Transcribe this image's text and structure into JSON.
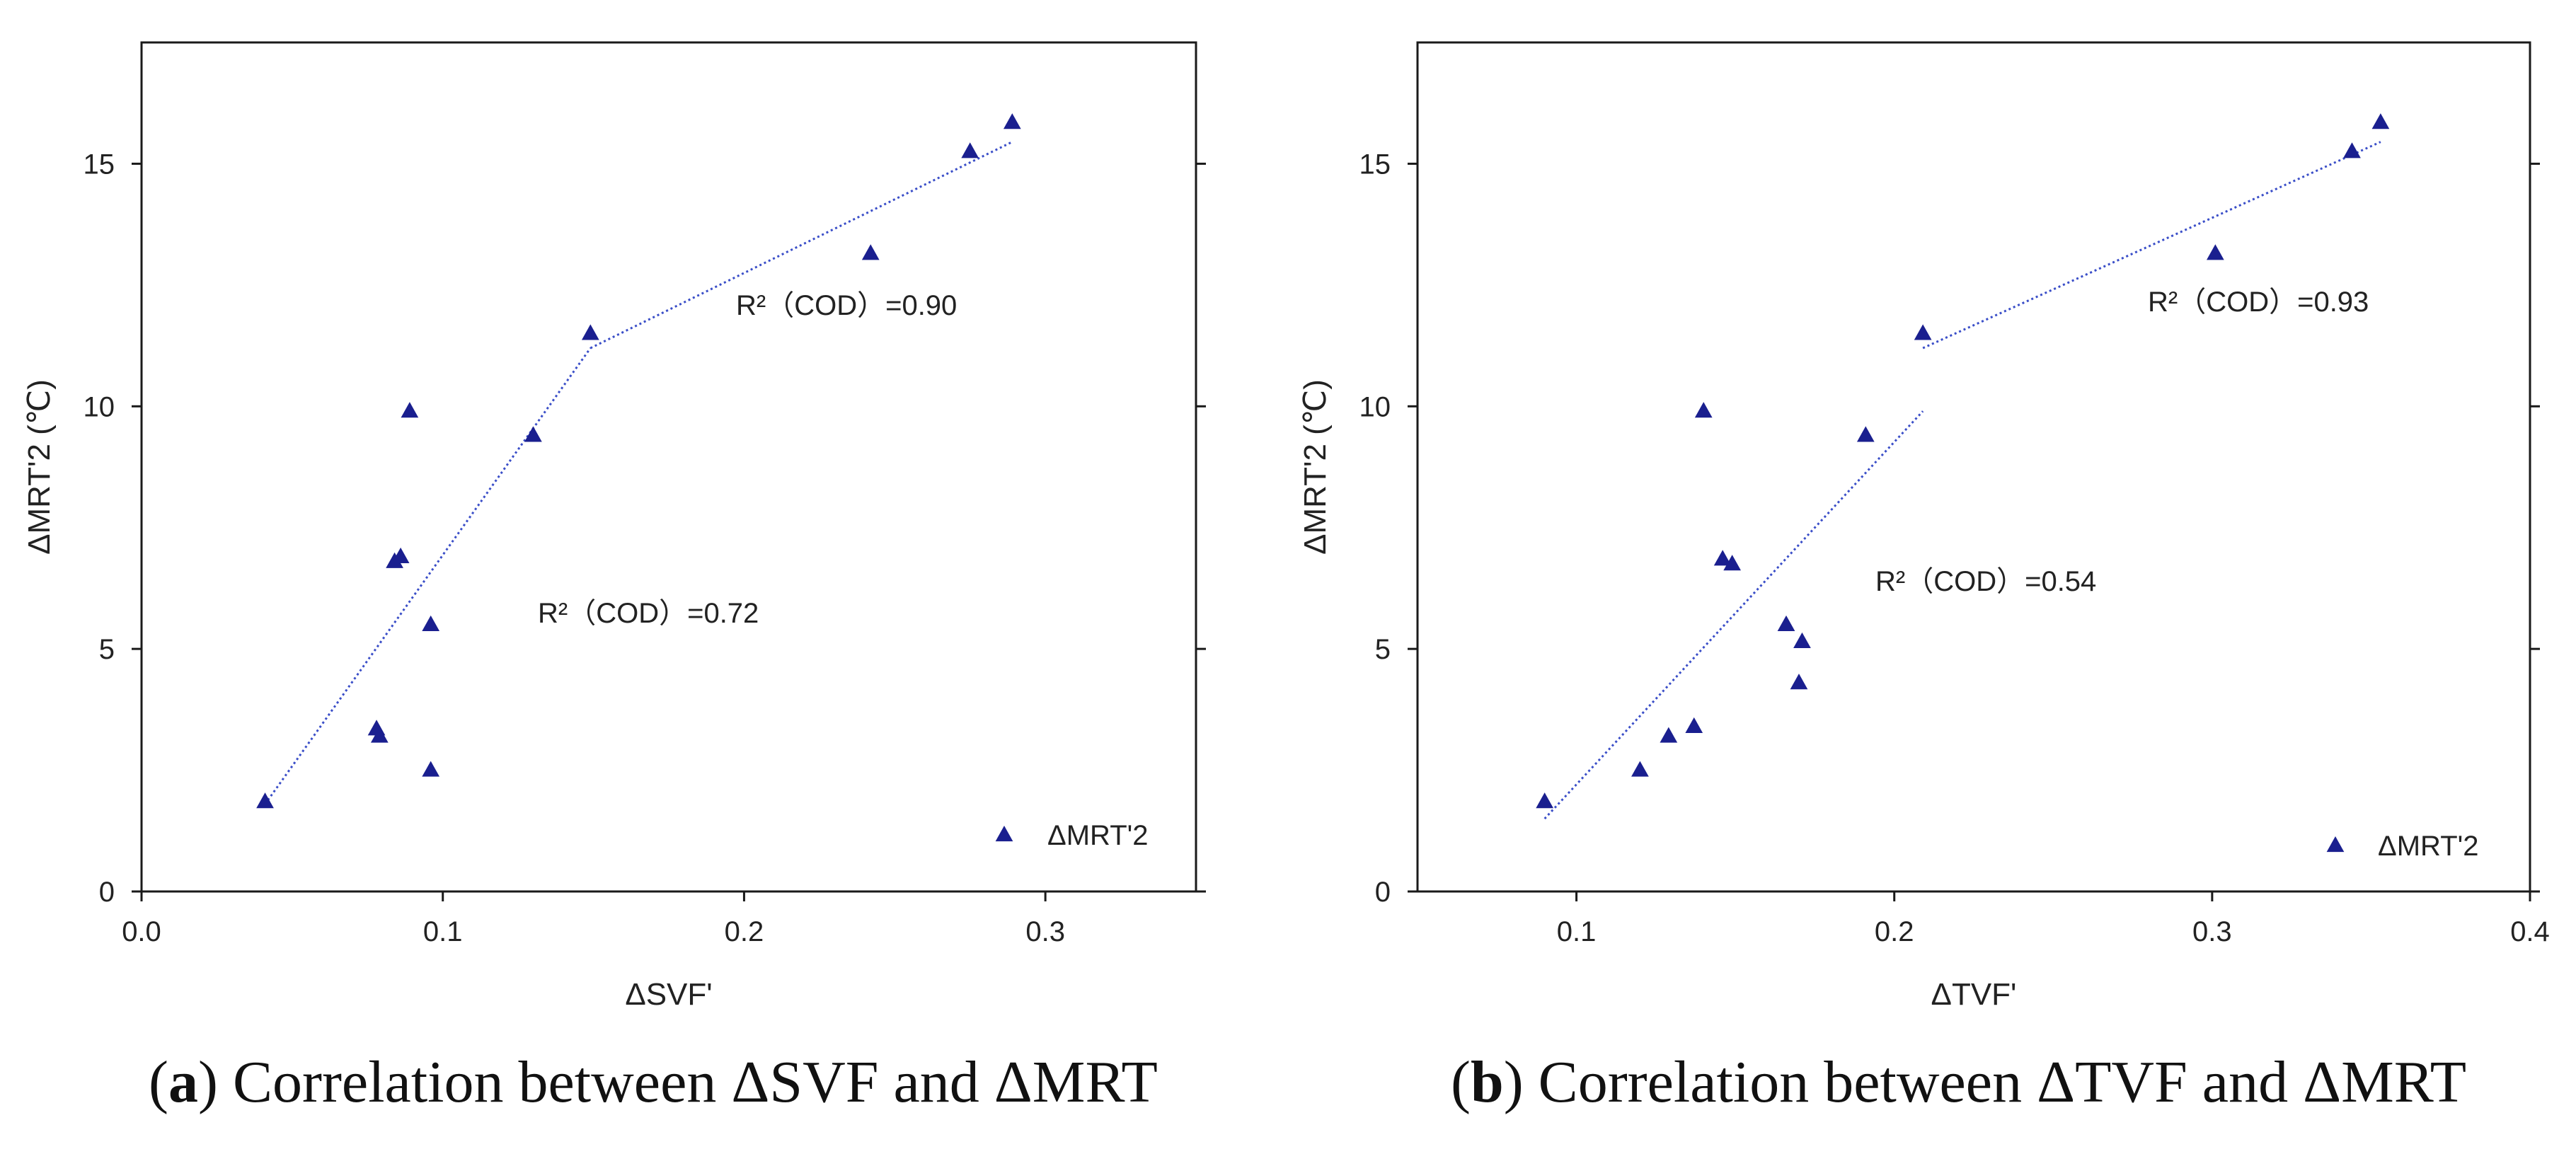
{
  "colors": {
    "marker": "#1a1f8f",
    "axis": "#1a1a1a",
    "fit": "#3a4ec8",
    "text": "#222222"
  },
  "captions": [
    {
      "paren_open": "(",
      "letter": "a",
      "rest": ") Correlation between ΔSVF and ΔMRT"
    },
    {
      "paren_open": "(",
      "letter": "b",
      "rest": ") Correlation between ΔTVF and ΔMRT"
    }
  ],
  "chart_data": [
    {
      "type": "scatter",
      "title": "",
      "xlabel": "ΔSVF'",
      "ylabel": "ΔMRT'2 (℃)",
      "xlim": [
        0.0,
        0.35
      ],
      "ylim": [
        0,
        17.5
      ],
      "xticks": [
        0.0,
        0.1,
        0.2,
        0.3
      ],
      "xtick_labels": [
        "0.0",
        "0.1",
        "0.2",
        "0.3"
      ],
      "yticks": [
        0,
        5,
        10,
        15
      ],
      "ytick_labels": [
        "0",
        "5",
        "10",
        "15"
      ],
      "grid": false,
      "legend": {
        "position": "bottom-right",
        "label": "ΔMRT'2"
      },
      "series": [
        {
          "name": "ΔMRT'2",
          "x": [
            0.041,
            0.078,
            0.079,
            0.084,
            0.086,
            0.089,
            0.096,
            0.096,
            0.13,
            0.149,
            0.242,
            0.275,
            0.289
          ],
          "y": [
            1.85,
            3.35,
            3.2,
            6.8,
            6.9,
            9.9,
            5.5,
            2.5,
            9.4,
            11.5,
            13.15,
            15.25,
            15.85
          ]
        }
      ],
      "fits": [
        {
          "x": [
            0.041,
            0.149
          ],
          "y": [
            1.8,
            11.2
          ],
          "label": "R²（COD）=0.72"
        },
        {
          "x": [
            0.149,
            0.289
          ],
          "y": [
            11.2,
            15.45
          ],
          "label": "R²（COD）=0.90"
        }
      ]
    },
    {
      "type": "scatter",
      "title": "",
      "xlabel": "ΔTVF'",
      "ylabel": "ΔMRT'2 (℃)",
      "xlim": [
        0.05,
        0.4
      ],
      "ylim": [
        0,
        17.5
      ],
      "xticks": [
        0.1,
        0.2,
        0.3,
        0.4
      ],
      "xtick_labels": [
        "0.1",
        "0.2",
        "0.3",
        "0.4"
      ],
      "yticks": [
        0,
        5,
        10,
        15
      ],
      "ytick_labels": [
        "0",
        "5",
        "10",
        "15"
      ],
      "grid": false,
      "legend": {
        "position": "bottom-right",
        "label": "ΔMRT'2"
      },
      "series": [
        {
          "name": "ΔMRT'2",
          "x": [
            0.09,
            0.12,
            0.129,
            0.137,
            0.14,
            0.146,
            0.149,
            0.166,
            0.17,
            0.171,
            0.191,
            0.209,
            0.301,
            0.344,
            0.353
          ],
          "y": [
            1.85,
            2.5,
            3.2,
            3.4,
            9.9,
            6.85,
            6.75,
            5.5,
            4.3,
            5.15,
            9.4,
            11.5,
            13.15,
            15.25,
            15.85
          ]
        }
      ],
      "fits": [
        {
          "x": [
            0.09,
            0.209
          ],
          "y": [
            1.5,
            9.9
          ],
          "label": "R²（COD）=0.54"
        },
        {
          "x": [
            0.209,
            0.353
          ],
          "y": [
            11.2,
            15.45
          ],
          "label": "R²（COD）=0.93"
        }
      ]
    }
  ]
}
